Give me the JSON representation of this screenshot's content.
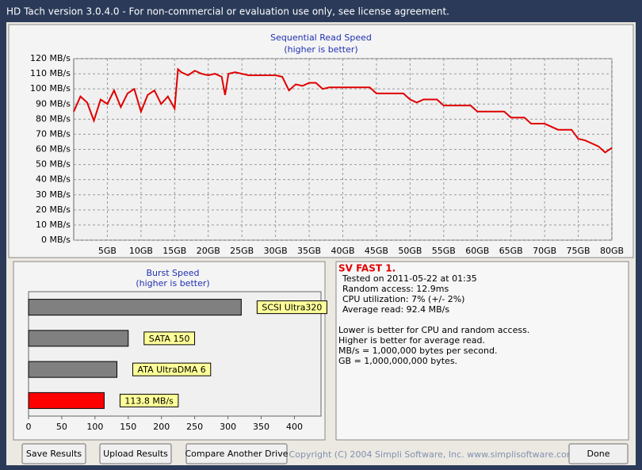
{
  "window": {
    "title": "HD Tach version 3.0.4.0  - For non-commercial or evaluation use only, see license agreement."
  },
  "chart_data": [
    {
      "type": "line",
      "title": "Sequential Read Speed",
      "subtitle": "(higher is better)",
      "color": "#e00000",
      "grid": true,
      "x": [
        0,
        1,
        2,
        3,
        4,
        5,
        6,
        7,
        8,
        9,
        10,
        11,
        12,
        13,
        14,
        15,
        15.5,
        16,
        17,
        18,
        19,
        20,
        21,
        22,
        22.5,
        23,
        24,
        25,
        26,
        27,
        28,
        29,
        30,
        31,
        32,
        33,
        34,
        35,
        36,
        37,
        38,
        40,
        42,
        44,
        45,
        47,
        49,
        50,
        51,
        52,
        54,
        55,
        57,
        59,
        60,
        62,
        64,
        65,
        66,
        67,
        68,
        70,
        72,
        73,
        74,
        75,
        76,
        77,
        78,
        79,
        80
      ],
      "values": [
        85,
        95,
        91,
        79,
        93,
        90,
        99,
        88,
        97,
        100,
        85,
        96,
        99,
        90,
        95,
        87,
        113,
        111,
        109,
        112,
        110,
        109,
        110,
        108,
        96,
        110,
        111,
        110,
        109,
        109,
        109,
        109,
        109,
        108,
        99,
        103,
        102,
        104,
        104,
        100,
        101,
        101,
        101,
        101,
        97,
        97,
        97,
        93,
        91,
        93,
        93,
        89,
        89,
        89,
        85,
        85,
        85,
        81,
        81,
        81,
        77,
        77,
        73,
        73,
        73,
        67,
        66,
        64,
        62,
        58,
        61
      ],
      "xlim": [
        0,
        80
      ],
      "xticks": [
        {
          "value": 5,
          "label": "5GB"
        },
        {
          "value": 10,
          "label": "10GB"
        },
        {
          "value": 15,
          "label": "15GB"
        },
        {
          "value": 20,
          "label": "20GB"
        },
        {
          "value": 25,
          "label": "25GB"
        },
        {
          "value": 30,
          "label": "30GB"
        },
        {
          "value": 35,
          "label": "35GB"
        },
        {
          "value": 40,
          "label": "40GB"
        },
        {
          "value": 45,
          "label": "45GB"
        },
        {
          "value": 50,
          "label": "50GB"
        },
        {
          "value": 55,
          "label": "55GB"
        },
        {
          "value": 60,
          "label": "60GB"
        },
        {
          "value": 65,
          "label": "65GB"
        },
        {
          "value": 70,
          "label": "70GB"
        },
        {
          "value": 75,
          "label": "75GB"
        },
        {
          "value": 80,
          "label": "80GB"
        }
      ],
      "ylim": [
        0,
        120
      ],
      "yticks": [
        {
          "value": 0,
          "label": "0 MB/s"
        },
        {
          "value": 10,
          "label": "10 MB/s"
        },
        {
          "value": 20,
          "label": "20 MB/s"
        },
        {
          "value": 30,
          "label": "30 MB/s"
        },
        {
          "value": 40,
          "label": "40 MB/s"
        },
        {
          "value": 50,
          "label": "50 MB/s"
        },
        {
          "value": 60,
          "label": "60 MB/s"
        },
        {
          "value": 70,
          "label": "70 MB/s"
        },
        {
          "value": 80,
          "label": "80 MB/s"
        },
        {
          "value": 90,
          "label": "90 MB/s"
        },
        {
          "value": 100,
          "label": "100 MB/s"
        },
        {
          "value": 110,
          "label": "110 MB/s"
        },
        {
          "value": 120,
          "label": "120 MB/s"
        }
      ]
    },
    {
      "type": "hbar",
      "title": "Burst Speed",
      "subtitle": "(higher is better)",
      "categories": [
        "SCSI Ultra320",
        "SATA 150",
        "ATA UltraDMA 6",
        null
      ],
      "values": [
        320,
        150,
        133,
        113.8
      ],
      "value_labels": [
        null,
        null,
        null,
        "113.8 MB/s"
      ],
      "colors": [
        "#808080",
        "#808080",
        "#808080",
        "#ff0000"
      ],
      "xlim": [
        0,
        440
      ],
      "xticks": [
        0,
        50,
        100,
        150,
        200,
        250,
        300,
        350,
        400
      ]
    }
  ],
  "info": {
    "title": "SV FAST 1.",
    "details": [
      "Tested on 2011-05-22 at 01:35",
      "Random access: 12.9ms",
      "CPU utilization: 7% (+/- 2%)",
      "Average read: 92.4 MB/s"
    ],
    "notes": [
      "Lower is better for CPU and random access.",
      "Higher is better for average read.",
      "MB/s = 1,000,000 bytes per second.",
      "GB = 1,000,000,000 bytes."
    ]
  },
  "buttons": [
    "Save Results",
    "Upload Results",
    "Compare Another Drive",
    "Done"
  ],
  "copyright": "Copyright (C) 2004 Simpli Software, Inc. www.simplisoftware.com"
}
